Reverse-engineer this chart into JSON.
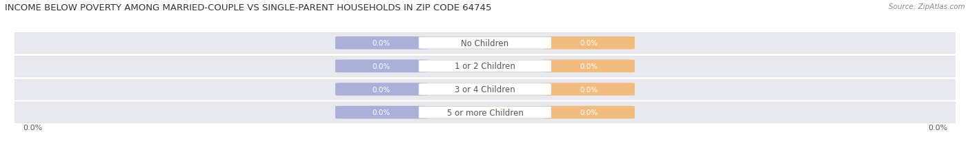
{
  "title": "INCOME BELOW POVERTY AMONG MARRIED-COUPLE VS SINGLE-PARENT HOUSEHOLDS IN ZIP CODE 64745",
  "source": "Source: ZipAtlas.com",
  "categories": [
    "No Children",
    "1 or 2 Children",
    "3 or 4 Children",
    "5 or more Children"
  ],
  "married_values": [
    0.0,
    0.0,
    0.0,
    0.0
  ],
  "single_values": [
    0.0,
    0.0,
    0.0,
    0.0
  ],
  "married_color": "#aab0d8",
  "single_color": "#f2bc80",
  "row_bg_even": "#e8e8ef",
  "row_bg_odd": "#f2f2f6",
  "row_border_color": "#d8d8e2",
  "title_fontsize": 9.5,
  "source_fontsize": 7.5,
  "legend_fontsize": 8.5,
  "value_fontsize": 7.5,
  "category_fontsize": 8.5,
  "axis_label_fontsize": 8,
  "background_color": "#ffffff",
  "fig_width": 14.06,
  "fig_height": 2.32
}
